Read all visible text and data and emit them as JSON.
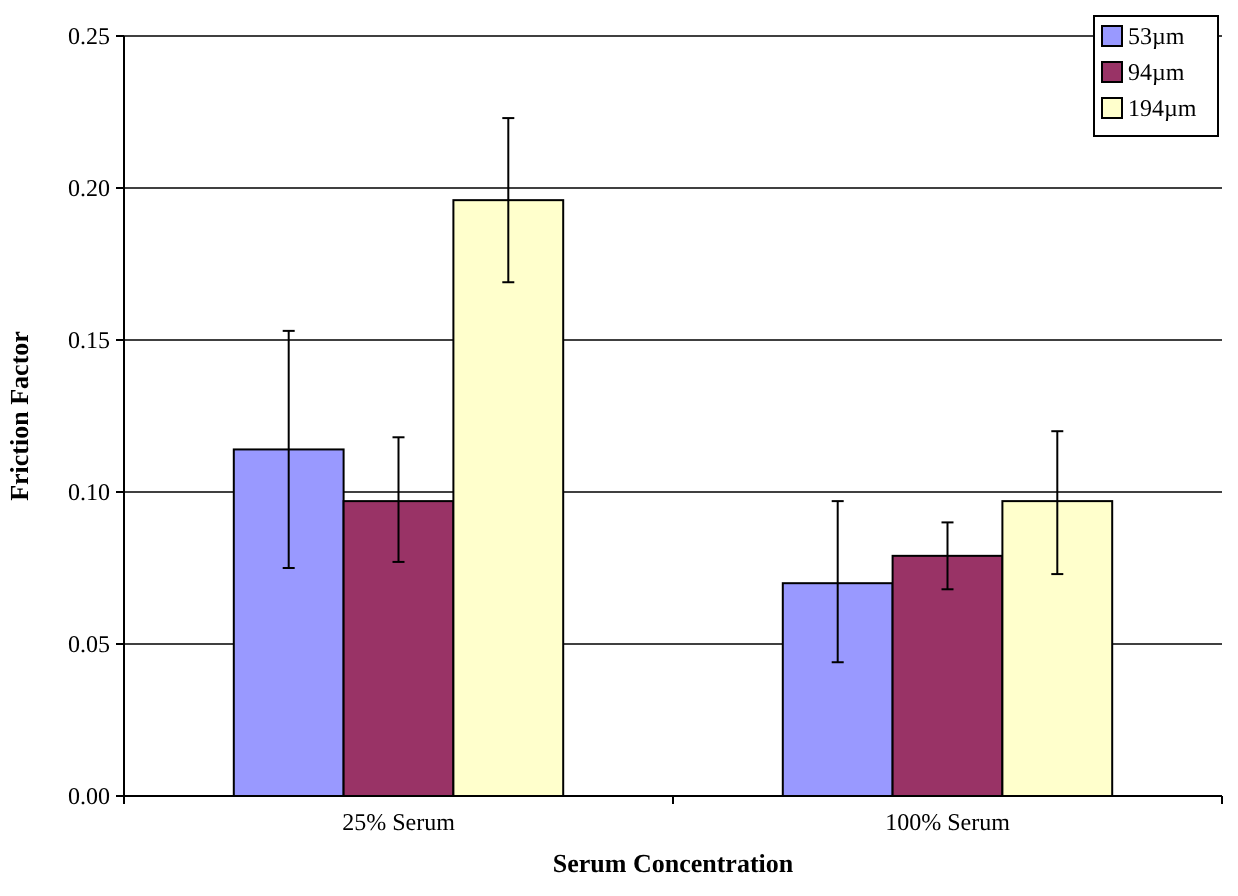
{
  "chart_data": {
    "type": "bar",
    "xlabel": "Serum Concentration",
    "ylabel": "Friction Factor",
    "categories": [
      "25% Serum",
      "100% Serum"
    ],
    "series": [
      {
        "name": "53µm",
        "color": "#9999ff",
        "values": [
          0.114,
          0.07
        ],
        "errors": [
          [
            0.075,
            0.153
          ],
          [
            0.044,
            0.097
          ]
        ]
      },
      {
        "name": "94µm",
        "color": "#993366",
        "values": [
          0.097,
          0.079
        ],
        "errors": [
          [
            0.077,
            0.118
          ],
          [
            0.068,
            0.09
          ]
        ]
      },
      {
        "name": "194µm",
        "color": "#ffffcc",
        "values": [
          0.196,
          0.097
        ],
        "errors": [
          [
            0.169,
            0.223
          ],
          [
            0.073,
            0.12
          ]
        ]
      }
    ],
    "ylim": [
      0,
      0.25
    ],
    "yticks": [
      {
        "value": 0,
        "label": "0.00"
      },
      {
        "value": 0.05,
        "label": "0.05"
      },
      {
        "value": 0.1,
        "label": "0.10"
      },
      {
        "value": 0.15,
        "label": "0.15"
      },
      {
        "value": 0.2,
        "label": "0.20"
      },
      {
        "value": 0.25,
        "label": "0.25"
      }
    ],
    "grid": "y",
    "legend": "top right"
  }
}
